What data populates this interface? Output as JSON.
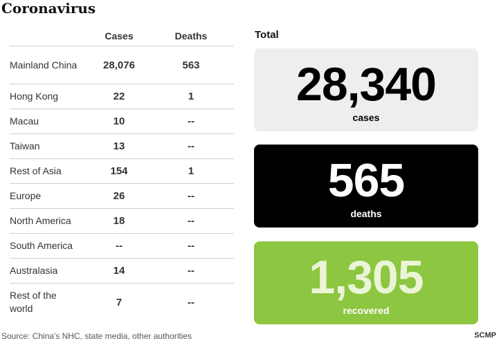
{
  "title": "Coronavirus",
  "table": {
    "header": {
      "cases": "Cases",
      "deaths": "Deaths"
    },
    "rows": [
      {
        "region": "Mainland China",
        "cases": "28,076",
        "deaths": "563"
      },
      {
        "region": "Hong Kong",
        "cases": "22",
        "deaths": "1"
      },
      {
        "region": "Macau",
        "cases": "10",
        "deaths": "--"
      },
      {
        "region": "Taiwan",
        "cases": "13",
        "deaths": "--"
      },
      {
        "region": "Rest of Asia",
        "cases": "154",
        "deaths": "1"
      },
      {
        "region": "Europe",
        "cases": "26",
        "deaths": "--"
      },
      {
        "region": "North America",
        "cases": "18",
        "deaths": "--"
      },
      {
        "region": "South America",
        "cases": "--",
        "deaths": "--"
      },
      {
        "region": "Australasia",
        "cases": "14",
        "deaths": "--"
      },
      {
        "region": "Rest of the world",
        "cases": "7",
        "deaths": "--"
      }
    ]
  },
  "totals": {
    "label": "Total",
    "cases": {
      "value": "28,340",
      "label": "cases"
    },
    "deaths": {
      "value": "565",
      "label": "deaths"
    },
    "recovered": {
      "value": "1,305",
      "label": "recovered"
    }
  },
  "colors": {
    "cases_box": "#eeeeee",
    "deaths_box": "#000000",
    "recovered_box": "#8dc640"
  },
  "source": "Source: China's NHC, state media, other authorities",
  "brand": "SCMP",
  "chart_data": {
    "type": "table",
    "title": "Coronavirus",
    "columns": [
      "",
      "Cases",
      "Deaths"
    ],
    "rows": [
      [
        "Mainland China",
        28076,
        563
      ],
      [
        "Hong Kong",
        22,
        1
      ],
      [
        "Macau",
        10,
        null
      ],
      [
        "Taiwan",
        13,
        null
      ],
      [
        "Rest of Asia",
        154,
        1
      ],
      [
        "Europe",
        26,
        null
      ],
      [
        "North America",
        18,
        null
      ],
      [
        "South America",
        null,
        null
      ],
      [
        "Australasia",
        14,
        null
      ],
      [
        "Rest of the world",
        7,
        null
      ]
    ],
    "totals": {
      "cases": 28340,
      "deaths": 565,
      "recovered": 1305
    }
  }
}
